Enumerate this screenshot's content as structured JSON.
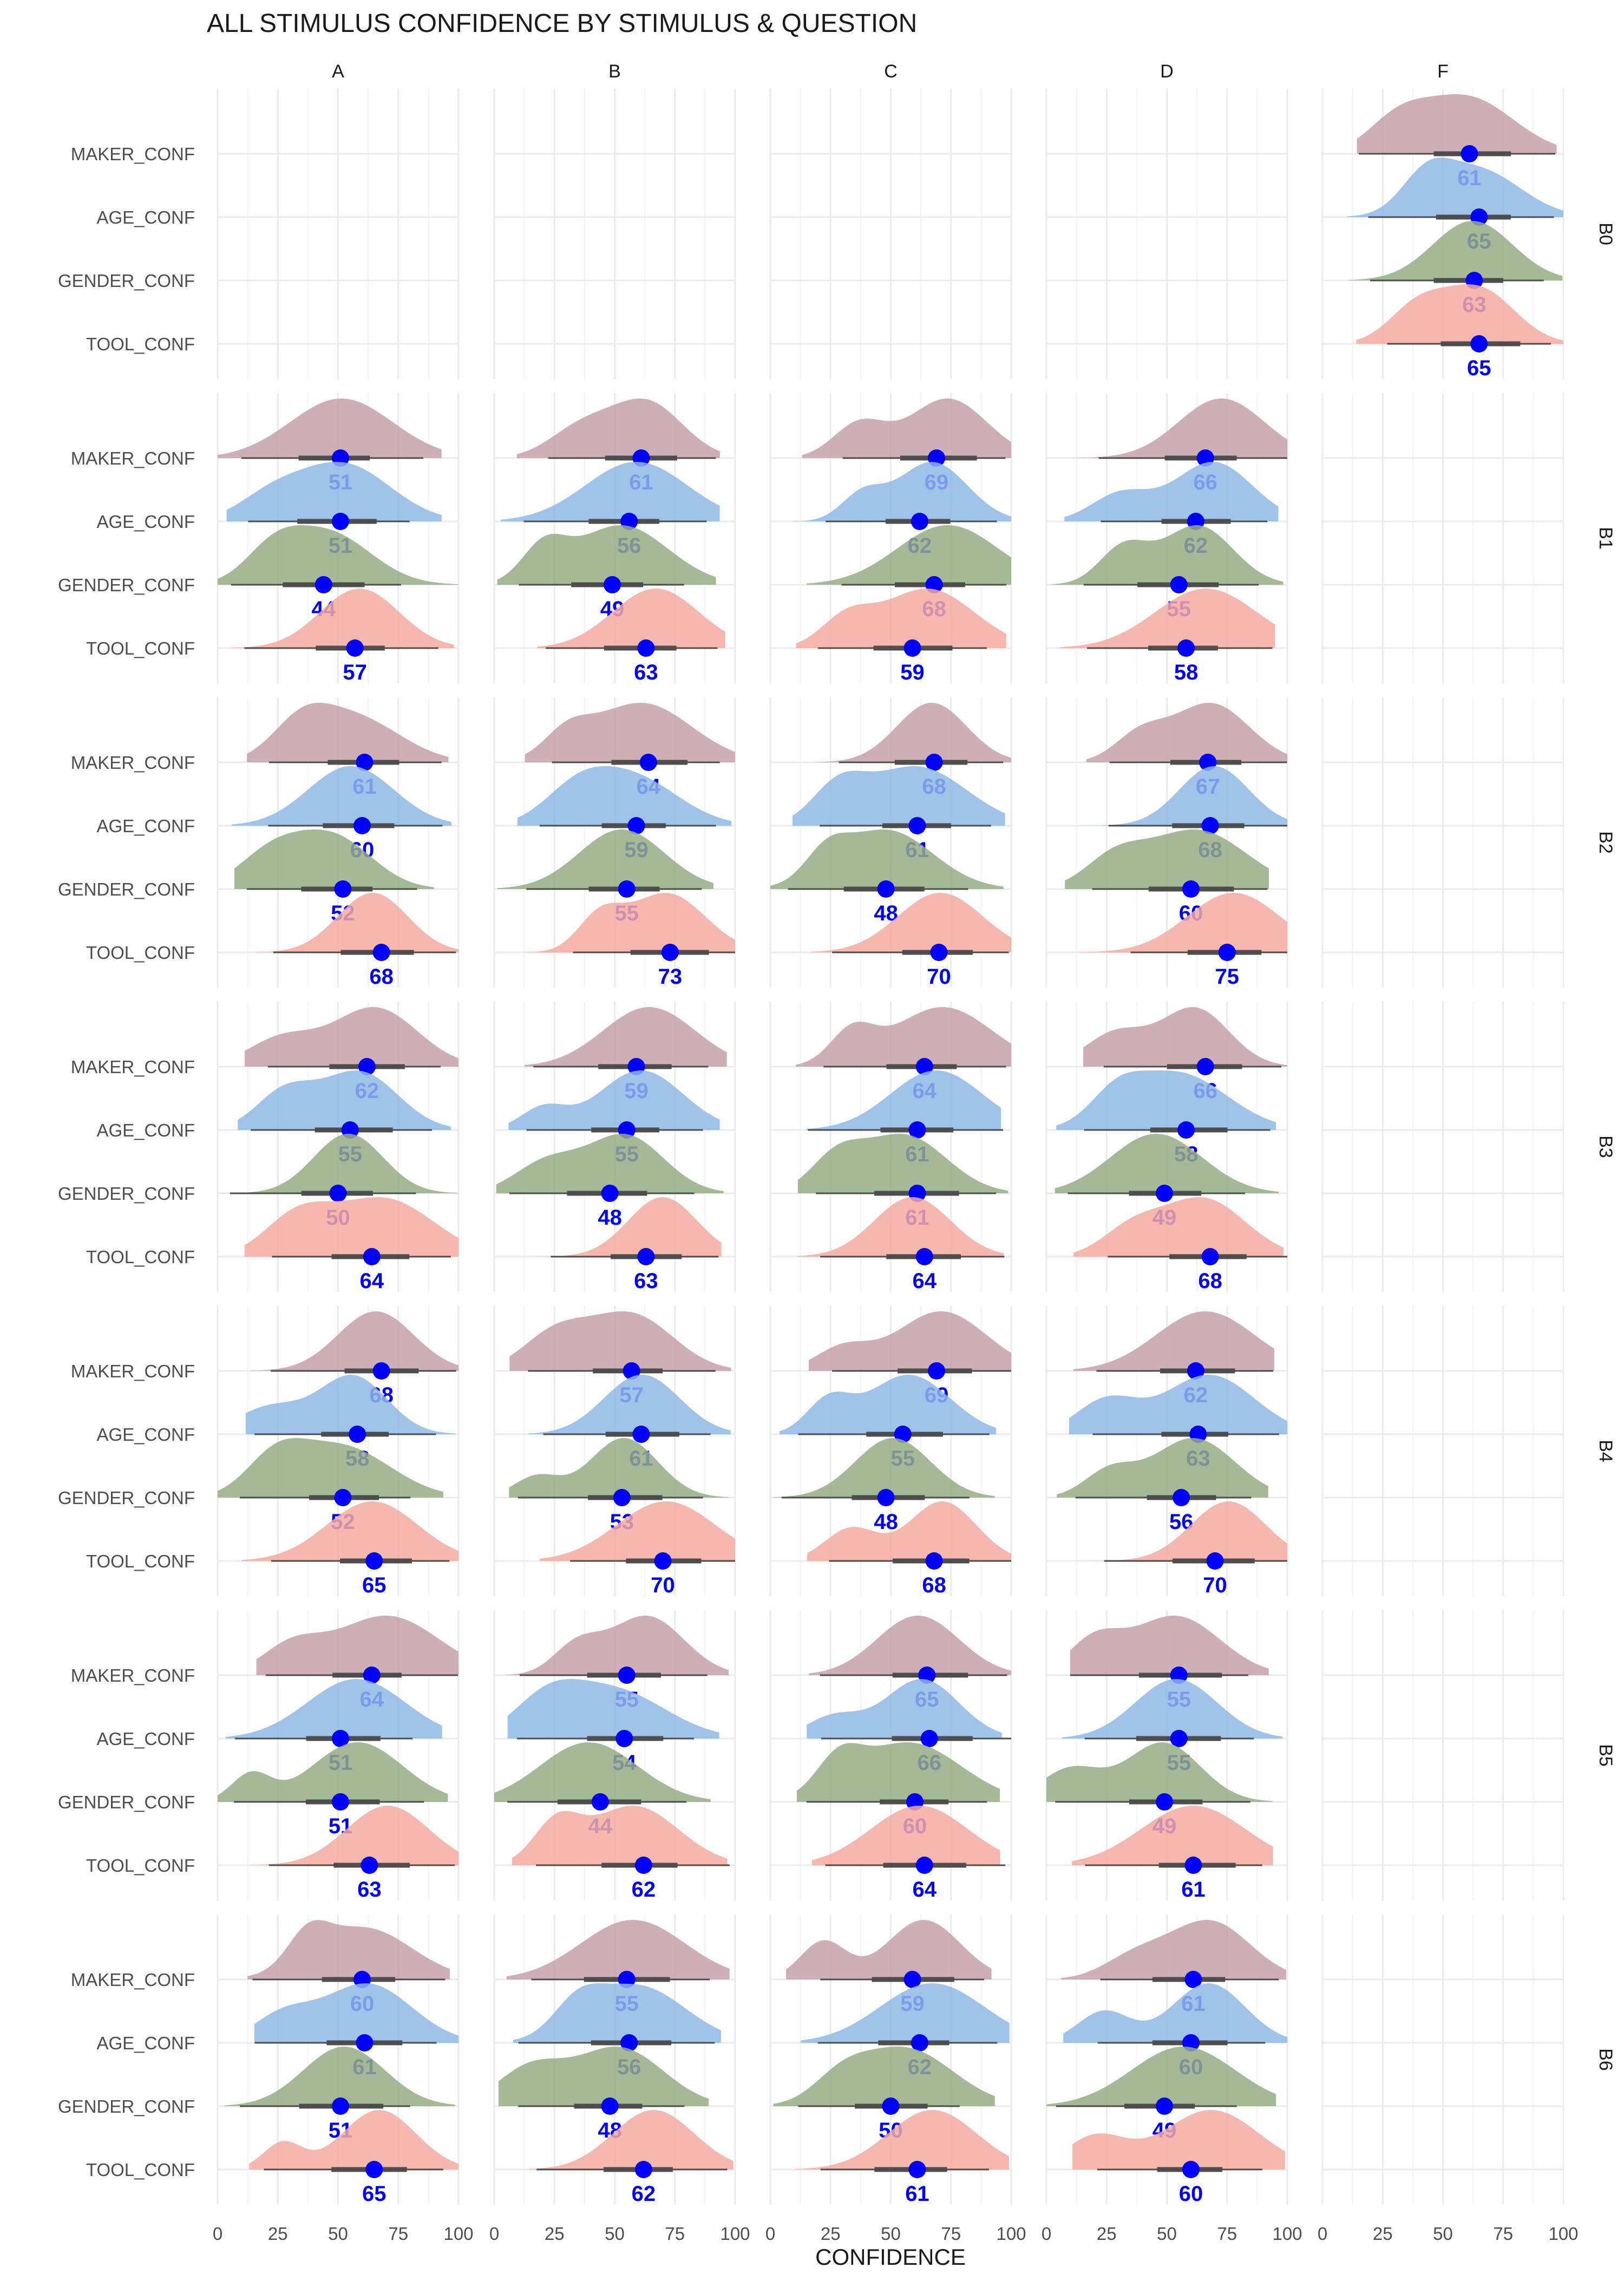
{
  "chart_data": {
    "type": "raincloud",
    "title": "ALL STIMULUS CONFIDENCE BY STIMULUS & QUESTION",
    "xlabel": "CONFIDENCE",
    "xlim": [
      0,
      100
    ],
    "x_ticks": [
      0,
      25,
      50,
      75,
      100
    ],
    "columns": [
      "A",
      "B",
      "C",
      "D",
      "F"
    ],
    "rows": [
      "B0",
      "B1",
      "B2",
      "B3",
      "B4",
      "B5",
      "B6"
    ],
    "questions": [
      "MAKER_CONF",
      "AGE_CONF",
      "GENDER_CONF",
      "TOOL_CONF"
    ],
    "colors": {
      "MAKER_CONF": "#c7a1aa",
      "AGE_CONF": "#8fb8e6",
      "GENDER_CONF": "#95ad85",
      "TOOL_CONF": "#f5aaa0",
      "point": "#0000ff",
      "label": "#0000ff",
      "interval": "#4d4d4d",
      "grid": "#ebebeb"
    },
    "grid": true,
    "median_labels": {
      "B0": {
        "F": [
          61,
          65,
          63,
          65
        ]
      },
      "B1": {
        "A": [
          51,
          51,
          44,
          57
        ],
        "B": [
          61,
          56,
          49,
          63
        ],
        "C": [
          69,
          62,
          68,
          59
        ],
        "D": [
          66,
          62,
          55,
          58
        ]
      },
      "B2": {
        "A": [
          61,
          60,
          52,
          68
        ],
        "B": [
          64,
          59,
          55,
          73
        ],
        "C": [
          68,
          61,
          48,
          70
        ],
        "D": [
          67,
          68,
          60,
          75
        ]
      },
      "B3": {
        "A": [
          62,
          55,
          50,
          64
        ],
        "B": [
          59,
          55,
          48,
          63
        ],
        "C": [
          64,
          61,
          61,
          64
        ],
        "D": [
          66,
          58,
          49,
          68
        ]
      },
      "B4": {
        "A": [
          68,
          58,
          52,
          65
        ],
        "B": [
          57,
          61,
          53,
          70
        ],
        "C": [
          69,
          55,
          48,
          68
        ],
        "D": [
          62,
          63,
          56,
          70
        ]
      },
      "B5": {
        "A": [
          64,
          51,
          51,
          63
        ],
        "B": [
          55,
          54,
          44,
          62
        ],
        "C": [
          65,
          66,
          60,
          64
        ],
        "D": [
          55,
          55,
          49,
          61
        ]
      },
      "B6": {
        "A": [
          60,
          61,
          51,
          65
        ],
        "B": [
          55,
          56,
          48,
          62
        ],
        "C": [
          59,
          62,
          50,
          61
        ],
        "D": [
          61,
          60,
          49,
          60
        ]
      }
    }
  }
}
